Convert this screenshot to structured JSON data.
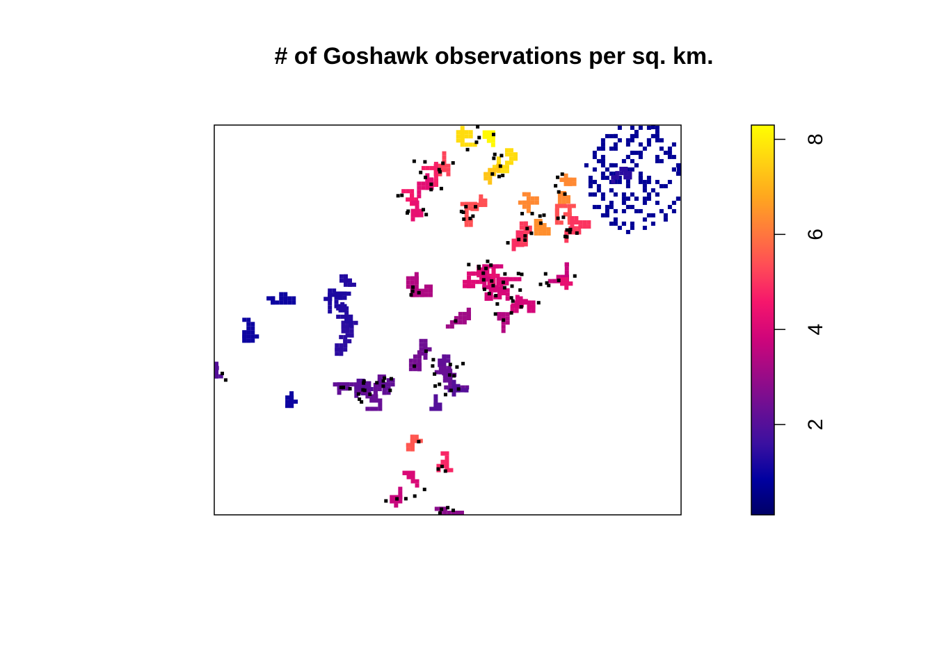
{
  "chart_data": {
    "type": "heatmap",
    "title": "# of Goshawk observations per sq. km.",
    "xlabel": "",
    "ylabel": "",
    "axes_shown": false,
    "legend": {
      "type": "colorbar",
      "placement": "right",
      "range": [
        0.1,
        8.3
      ],
      "ticks": [
        2,
        4,
        6,
        8
      ],
      "tick_labels": [
        "2",
        "4",
        "6",
        "8"
      ],
      "palette": [
        "#000066",
        "#0000a0",
        "#3a10a0",
        "#6a0f94",
        "#9e0b86",
        "#d0057a",
        "#f5166c",
        "#ff4b57",
        "#ff7a3c",
        "#ffa81e",
        "#ffd312",
        "#ffff00"
      ]
    },
    "observation_marker_color": "#000000",
    "grid": false,
    "series": [
      {
        "name": "",
        "cells": [
          [
            0.575,
            0.997,
            8.2
          ],
          [
            0.545,
            0.955,
            7.7
          ],
          [
            0.605,
            0.93,
            7.7
          ],
          [
            0.595,
            0.89,
            7.3
          ],
          [
            0.497,
            0.89,
            5.2
          ],
          [
            0.435,
            0.895,
            4.7
          ],
          [
            0.461,
            0.855,
            4.2
          ],
          [
            0.41,
            0.825,
            4.6
          ],
          [
            0.43,
            0.785,
            4.3
          ],
          [
            0.54,
            0.79,
            5.4
          ],
          [
            0.545,
            0.76,
            5.4
          ],
          [
            0.74,
            0.865,
            6.3
          ],
          [
            0.745,
            0.82,
            6.3
          ],
          [
            0.66,
            0.785,
            6.3
          ],
          [
            0.685,
            0.77,
            6.4
          ],
          [
            0.73,
            0.755,
            5.4
          ],
          [
            0.75,
            0.73,
            5.1
          ],
          [
            0.78,
            0.745,
            5.0
          ],
          [
            0.655,
            0.73,
            4.9
          ],
          [
            0.645,
            0.71,
            5.1
          ],
          [
            0.55,
            0.635,
            4.1
          ],
          [
            0.585,
            0.64,
            4.3
          ],
          [
            0.58,
            0.62,
            4.1
          ],
          [
            0.58,
            0.585,
            4.0
          ],
          [
            0.61,
            0.6,
            3.9
          ],
          [
            0.64,
            0.61,
            4.0
          ],
          [
            0.645,
            0.575,
            4.0
          ],
          [
            0.615,
            0.56,
            3.9
          ],
          [
            0.67,
            0.55,
            3.9
          ],
          [
            0.715,
            0.605,
            3.7
          ],
          [
            0.75,
            0.62,
            4.3
          ],
          [
            0.45,
            0.58,
            3.3
          ],
          [
            0.42,
            0.58,
            3.4
          ],
          [
            0.505,
            0.51,
            3.1
          ],
          [
            0.615,
            0.52,
            3.4
          ],
          [
            0.43,
            0.43,
            2.4
          ],
          [
            0.435,
            0.39,
            2.5
          ],
          [
            0.47,
            0.39,
            2.2
          ],
          [
            0.51,
            0.375,
            2.3
          ],
          [
            0.49,
            0.35,
            2.3
          ],
          [
            0.35,
            0.36,
            2.3
          ],
          [
            0.36,
            0.34,
            2.2
          ],
          [
            0.305,
            0.36,
            2.0
          ],
          [
            0.29,
            0.34,
            2.2
          ],
          [
            0.47,
            0.32,
            2.0
          ],
          [
            0.5,
            0.325,
            2.0
          ],
          [
            0.3,
            0.3,
            2.1
          ],
          [
            0.315,
            0.32,
            2.3
          ],
          [
            0.01,
            0.35,
            2.0
          ],
          [
            0.285,
            0.44,
            1.4
          ],
          [
            0.29,
            0.455,
            1.4
          ],
          [
            0.275,
            0.53,
            1.2
          ],
          [
            0.295,
            0.585,
            1.3
          ],
          [
            0.27,
            0.57,
            1.2
          ],
          [
            0.27,
            0.535,
            1.3
          ],
          [
            0.13,
            0.55,
            1.0
          ],
          [
            0.06,
            0.495,
            1.0
          ],
          [
            0.17,
            0.285,
            1.0
          ],
          [
            0.42,
            0.195,
            5.5
          ],
          [
            0.485,
            0.12,
            4.8
          ],
          [
            0.43,
            0.07,
            4.0
          ],
          [
            0.385,
            0.04,
            3.7
          ],
          [
            0.49,
            0.01,
            2.8
          ],
          [
            0.9,
            0.87,
            0.7
          ],
          [
            0.85,
            0.85,
            1.4
          ]
        ]
      }
    ]
  }
}
